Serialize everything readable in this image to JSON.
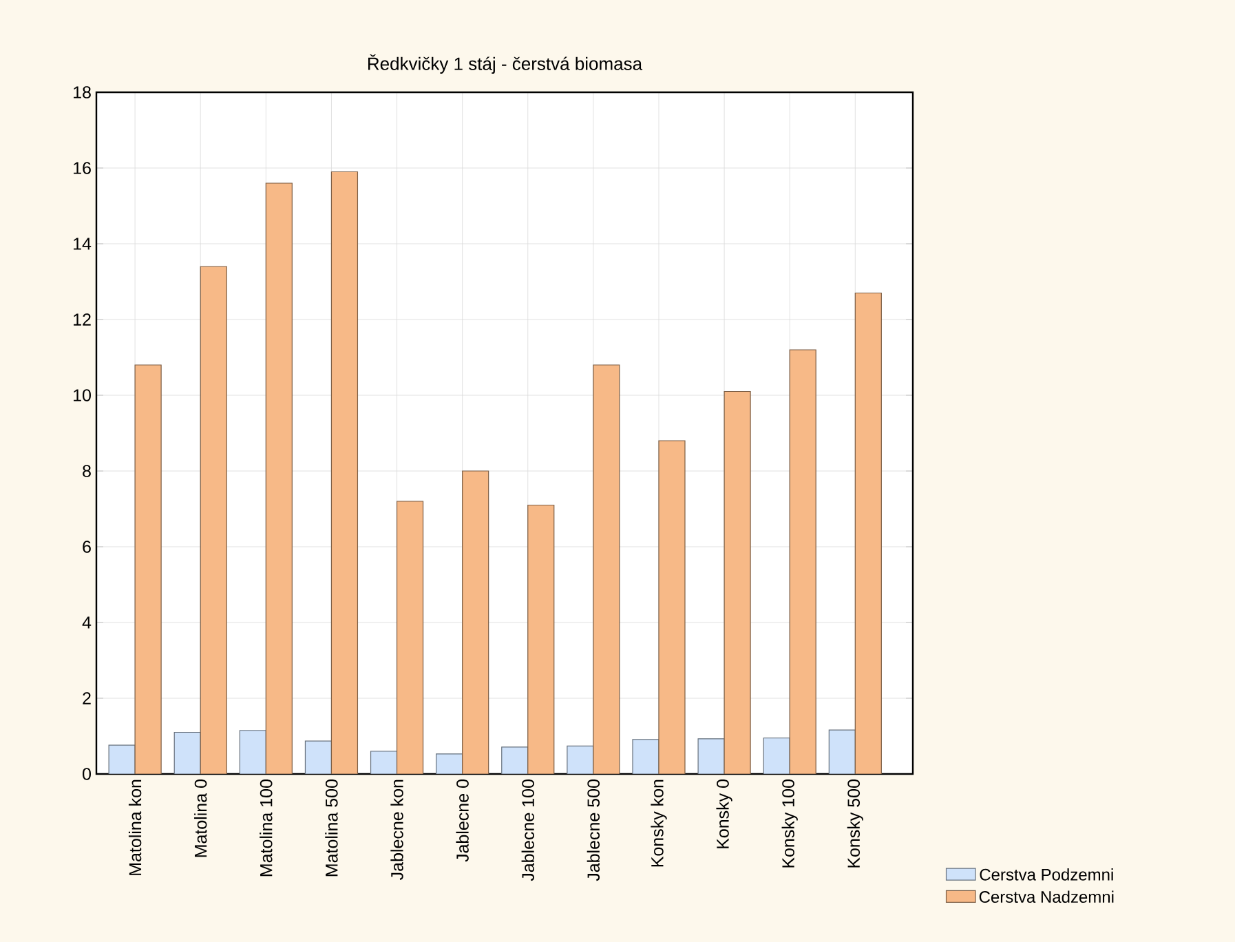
{
  "chart_data": {
    "type": "bar",
    "title": "Ředkvičky 1 stáj - čerstvá biomasa",
    "categories": [
      "Matolina kon",
      "Matolina 0",
      "Matolina 100",
      "Matolina 500",
      "Jablecne kon",
      "Jablecne 0",
      "Jablecne 100",
      "Jablecne 500",
      "Konsky kon",
      "Konsky 0",
      "Konsky 100",
      "Konsky 500"
    ],
    "series": [
      {
        "name": "Cerstva Podzemni",
        "color": "#cfe2fa",
        "values": [
          0.76,
          1.1,
          1.15,
          0.87,
          0.6,
          0.53,
          0.71,
          0.74,
          0.91,
          0.93,
          0.95,
          1.16
        ]
      },
      {
        "name": "Cerstva Nadzemni",
        "color": "#f7b987",
        "values": [
          10.8,
          13.4,
          15.6,
          15.9,
          7.2,
          8.0,
          7.1,
          10.8,
          8.8,
          10.1,
          11.2,
          12.7
        ]
      }
    ],
    "ylim": [
      0,
      18
    ],
    "yticks": [
      0,
      2,
      4,
      6,
      8,
      10,
      12,
      14,
      16,
      18
    ],
    "grid": true,
    "legend": "bottom right"
  }
}
